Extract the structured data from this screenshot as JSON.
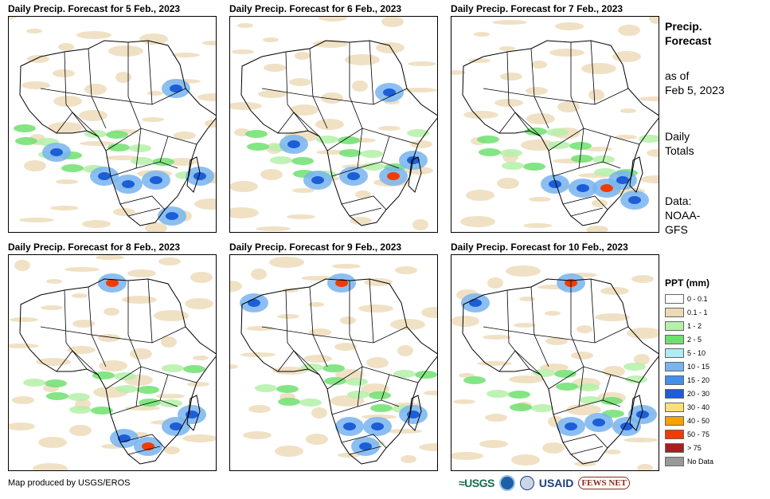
{
  "panels": [
    {
      "title": "Daily Precip. Forecast for 5 Feb., 2023"
    },
    {
      "title": "Daily Precip. Forecast for 6 Feb., 2023"
    },
    {
      "title": "Daily Precip. Forecast for 7 Feb., 2023"
    },
    {
      "title": "Daily Precip. Forecast for 8 Feb., 2023"
    },
    {
      "title": "Daily Precip. Forecast for 9 Feb., 2023"
    },
    {
      "title": "Daily Precip. Forecast for 10 Feb., 2023"
    }
  ],
  "sidebar": {
    "title_line1": "Precip.",
    "title_line2": "Forecast",
    "asof_line1": "as of",
    "asof_line2": "Feb 5, 2023",
    "totals_line1": "Daily",
    "totals_line2": "Totals",
    "data_line1": "Data:",
    "data_line2": "NOAA-",
    "data_line3": "GFS"
  },
  "legend": {
    "title": "PPT (mm)",
    "items": [
      {
        "label": "0 - 0.1",
        "color": "#ffffff"
      },
      {
        "label": "0.1 - 1",
        "color": "#ecd9b6"
      },
      {
        "label": "1 - 2",
        "color": "#b4f0a8"
      },
      {
        "label": "2 - 5",
        "color": "#6ee06e"
      },
      {
        "label": "5 - 10",
        "color": "#b0ecf4"
      },
      {
        "label": "10 - 15",
        "color": "#78b4ee"
      },
      {
        "label": "15 - 20",
        "color": "#4490e6"
      },
      {
        "label": "20 - 30",
        "color": "#1c5ed8"
      },
      {
        "label": "30 - 40",
        "color": "#fae07a"
      },
      {
        "label": "40 - 50",
        "color": "#f5a300"
      },
      {
        "label": "50 - 75",
        "color": "#f03c00"
      },
      {
        "label": "> 75",
        "color": "#a81e1e"
      },
      {
        "label": "No Data",
        "color": "#999999"
      }
    ]
  },
  "footer": {
    "credit": "Map produced by USGS/EROS"
  },
  "logos": {
    "usgs": "≈USGS",
    "usgs_icon": "usgs-logo",
    "noaa_icon": "noaa-logo",
    "usaid_seal_icon": "usaid-seal",
    "usaid": "USAID",
    "fews": "FEWS NET"
  }
}
